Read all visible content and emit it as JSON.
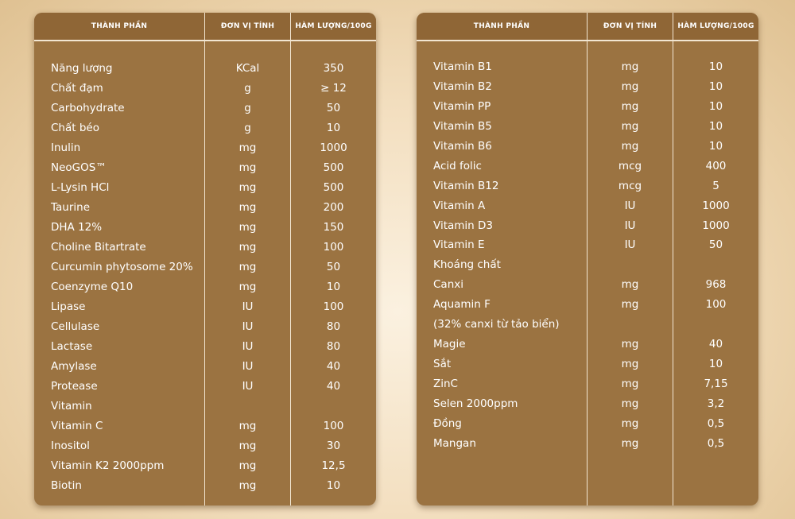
{
  "tables": [
    {
      "headers": {
        "name": "THÀNH PHẦN",
        "unit": "ĐƠN VỊ TÍNH",
        "amount": "HÀM LƯỢNG/100G"
      },
      "rows": [
        {
          "name": "Năng lượng",
          "unit": "KCal",
          "amount": "350"
        },
        {
          "name": "Chất đạm",
          "unit": "g",
          "amount": "≥ 12"
        },
        {
          "name": "Carbohydrate",
          "unit": "g",
          "amount": "50"
        },
        {
          "name": "Chất béo",
          "unit": "g",
          "amount": "10"
        },
        {
          "name": "Inulin",
          "unit": "mg",
          "amount": "1000"
        },
        {
          "name": "NeoGOS™",
          "unit": "mg",
          "amount": "500"
        },
        {
          "name": "L-Lysin HCl",
          "unit": "mg",
          "amount": "500"
        },
        {
          "name": "Taurine",
          "unit": "mg",
          "amount": "200"
        },
        {
          "name": "DHA 12%",
          "unit": "mg",
          "amount": "150"
        },
        {
          "name": "Choline Bitartrate",
          "unit": "mg",
          "amount": "100"
        },
        {
          "name": "Curcumin phytosome 20%",
          "unit": "mg",
          "amount": "50"
        },
        {
          "name": "Coenzyme Q10",
          "unit": "mg",
          "amount": "10"
        },
        {
          "name": "Lipase",
          "unit": "IU",
          "amount": "100"
        },
        {
          "name": "Cellulase",
          "unit": "IU",
          "amount": "80"
        },
        {
          "name": "Lactase",
          "unit": "IU",
          "amount": "80"
        },
        {
          "name": "Amylase",
          "unit": "IU",
          "amount": "40"
        },
        {
          "name": "Protease",
          "unit": "IU",
          "amount": "40"
        },
        {
          "name": "Vitamin",
          "unit": "",
          "amount": ""
        },
        {
          "name": "Vitamin C",
          "unit": "mg",
          "amount": "100"
        },
        {
          "name": "Inositol",
          "unit": "mg",
          "amount": "30"
        },
        {
          "name": "Vitamin K2 2000ppm",
          "unit": "mg",
          "amount": "12,5"
        },
        {
          "name": "Biotin",
          "unit": "mg",
          "amount": "10"
        }
      ]
    },
    {
      "headers": {
        "name": "THÀNH PHẦN",
        "unit": "ĐƠN VỊ TÍNH",
        "amount": "HÀM LƯỢNG/100G"
      },
      "rows": [
        {
          "name": "Vitamin B1",
          "unit": "mg",
          "amount": "10"
        },
        {
          "name": "Vitamin B2",
          "unit": "mg",
          "amount": "10"
        },
        {
          "name": "Vitamin PP",
          "unit": "mg",
          "amount": "10"
        },
        {
          "name": "Vitamin B5",
          "unit": "mg",
          "amount": "10"
        },
        {
          "name": "Vitamin B6",
          "unit": "mg",
          "amount": "10"
        },
        {
          "name": "Acid folic",
          "unit": "mcg",
          "amount": "400"
        },
        {
          "name": "Vitamin B12",
          "unit": "mcg",
          "amount": "5"
        },
        {
          "name": "Vitamin A",
          "unit": "IU",
          "amount": "1000"
        },
        {
          "name": "Vitamin D3",
          "unit": "IU",
          "amount": "1000"
        },
        {
          "name": "Vitamin E",
          "unit": "IU",
          "amount": "50"
        },
        {
          "name": "Khoáng chất",
          "unit": "",
          "amount": ""
        },
        {
          "name": "Canxi",
          "unit": "mg",
          "amount": "968"
        },
        {
          "name": "Aquamin F",
          "unit": "mg",
          "amount": "100"
        },
        {
          "name": "(32% canxi từ tảo biển)",
          "unit": "",
          "amount": ""
        },
        {
          "name": "Magie",
          "unit": "mg",
          "amount": "40"
        },
        {
          "name": "Sắt",
          "unit": "mg",
          "amount": "10"
        },
        {
          "name": "ZinC",
          "unit": "mg",
          "amount": "7,15"
        },
        {
          "name": "Selen 2000ppm",
          "unit": "mg",
          "amount": "3,2"
        },
        {
          "name": "Đồng",
          "unit": "mg",
          "amount": "0,5"
        },
        {
          "name": "Mangan",
          "unit": "mg",
          "amount": "0,5"
        }
      ]
    }
  ]
}
